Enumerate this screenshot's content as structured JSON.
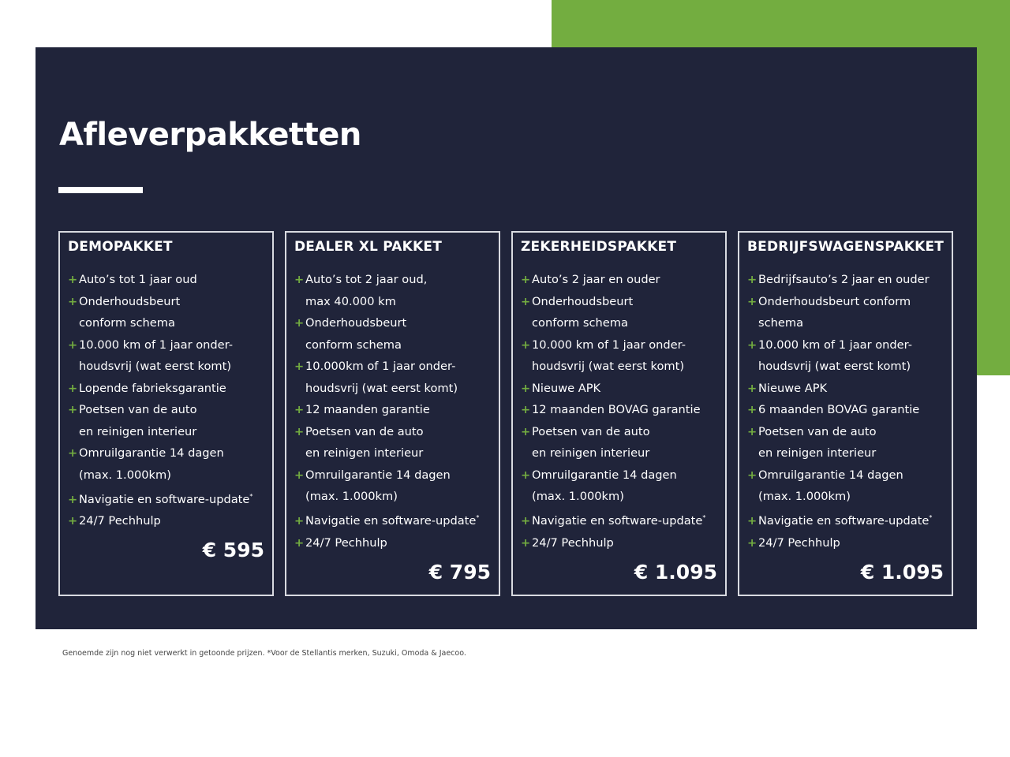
{
  "title": "Afleverpakketten",
  "colors": {
    "navy": "#20243a",
    "green": "#73ad40"
  },
  "footnote": "Genoemde zijn nog niet verwerkt in getoonde prijzen. *Voor de Stellantis merken, Suzuki, Omoda & Jaecoo.",
  "cards": [
    {
      "name": "DEMOPAKKET",
      "price": "€ 595",
      "items": [
        [
          "Auto’s tot 1 jaar oud"
        ],
        [
          "Onderhoudsbeurt",
          "conform schema"
        ],
        [
          "10.000 km of 1 jaar onder-",
          "houdsvrij (wat eerst komt)"
        ],
        [
          "Lopende fabrieksgarantie"
        ],
        [
          "Poetsen van de auto",
          "en reinigen interieur"
        ],
        [
          "Omruilgarantie 14 dagen",
          "(max. 1.000km)"
        ],
        [
          "Navigatie en software-update*"
        ],
        [
          "24/7 Pechhulp"
        ]
      ]
    },
    {
      "name": "DEALER XL PAKKET",
      "price": "€ 795",
      "items": [
        [
          "Auto’s tot 2 jaar oud,",
          "max 40.000 km"
        ],
        [
          "Onderhoudsbeurt",
          "conform schema"
        ],
        [
          "10.000km of 1 jaar onder-",
          "houdsvrij (wat eerst komt)"
        ],
        [
          "12 maanden garantie"
        ],
        [
          "Poetsen van de auto",
          "en reinigen interieur"
        ],
        [
          "Omruilgarantie 14 dagen",
          "(max. 1.000km)"
        ],
        [
          "Navigatie en software-update*"
        ],
        [
          "24/7 Pechhulp"
        ]
      ]
    },
    {
      "name": "ZEKERHEIDSPAKKET",
      "price": "€ 1.095",
      "items": [
        [
          "Auto’s 2 jaar en ouder"
        ],
        [
          "Onderhoudsbeurt",
          "conform schema"
        ],
        [
          "10.000 km of 1 jaar onder-",
          "houdsvrij (wat eerst komt)"
        ],
        [
          "Nieuwe APK"
        ],
        [
          "12 maanden BOVAG garantie"
        ],
        [
          "Poetsen van de auto",
          "en reinigen interieur"
        ],
        [
          "Omruilgarantie 14 dagen",
          "(max. 1.000km)"
        ],
        [
          "Navigatie en software-update*"
        ],
        [
          "24/7 Pechhulp"
        ]
      ]
    },
    {
      "name": "BEDRIJFSWAGENSPAKKET",
      "price": "€ 1.095",
      "items": [
        [
          "Bedrijfsauto’s 2 jaar en ouder"
        ],
        [
          "Onderhoudsbeurt conform",
          "schema"
        ],
        [
          "10.000 km of 1 jaar onder-",
          "houdsvrij (wat eerst komt)"
        ],
        [
          "Nieuwe APK"
        ],
        [
          "6 maanden BOVAG garantie"
        ],
        [
          "Poetsen van de auto",
          "en reinigen interieur"
        ],
        [
          "Omruilgarantie 14 dagen",
          "(max. 1.000km)"
        ],
        [
          "Navigatie en software-update*"
        ],
        [
          "24/7 Pechhulp"
        ]
      ]
    }
  ]
}
